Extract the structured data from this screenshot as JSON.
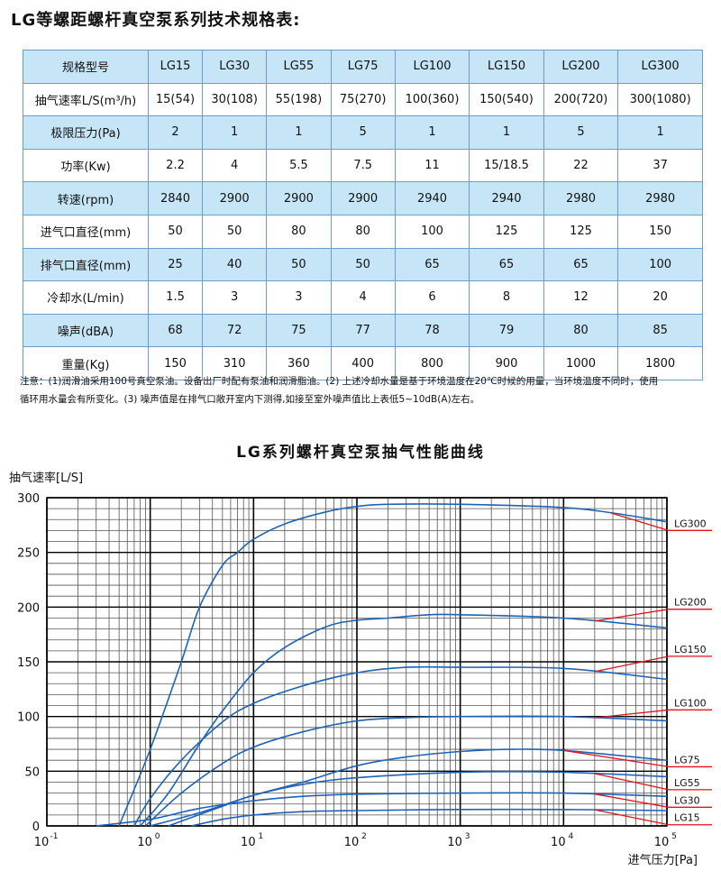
{
  "page_title": "LG等螺距螺杆真空泵系列技术规格表:",
  "spec_table": {
    "header": [
      "规格型号",
      "LG15",
      "LG30",
      "LG55",
      "LG75",
      "LG100",
      "LG150",
      "LG200",
      "LG300"
    ],
    "rows": [
      {
        "label": "抽气速率L/S(m³/h)",
        "values": [
          "15(54)",
          "30(108)",
          "55(198)",
          "75(270)",
          "100(360)",
          "150(540)",
          "200(720)",
          "300(1080)"
        ]
      },
      {
        "label": "极限压力(Pa)",
        "values": [
          "2",
          "1",
          "1",
          "5",
          "1",
          "1",
          "5",
          "1"
        ]
      },
      {
        "label": "功率(Kw)",
        "values": [
          "2.2",
          "4",
          "5.5",
          "7.5",
          "11",
          "15/18.5",
          "22",
          "37"
        ]
      },
      {
        "label": "转速(rpm)",
        "values": [
          "2840",
          "2900",
          "2900",
          "2900",
          "2940",
          "2940",
          "2980",
          "2980"
        ]
      },
      {
        "label": "进气口直径(mm)",
        "values": [
          "50",
          "50",
          "80",
          "80",
          "100",
          "125",
          "125",
          "150"
        ]
      },
      {
        "label": "排气口直径(mm)",
        "values": [
          "25",
          "40",
          "50",
          "50",
          "65",
          "65",
          "65",
          "100"
        ]
      },
      {
        "label": "冷却水(L/min)",
        "values": [
          "1.5",
          "3",
          "3",
          "4",
          "6",
          "8",
          "12",
          "20"
        ]
      },
      {
        "label": "噪声(dBA)",
        "values": [
          "68",
          "72",
          "75",
          "77",
          "78",
          "79",
          "80",
          "85"
        ]
      },
      {
        "label": "重量(Kg)",
        "values": [
          "150",
          "310",
          "360",
          "400",
          "800",
          "900",
          "1000",
          "1800"
        ]
      }
    ]
  },
  "notes": {
    "line1": "注意：(1)润滑油采用100号真空泵油。设备出厂时配有泵油和润滑脂油。(2) 上述冷却水量是基于环境温度在20℃时候的用量，当环境温度不同时，使用",
    "line2": "循环用水量会有所变化。(3) 噪声值是在排气口敞开室内下测得,如接至室外噪声值比上表低5~10dB(A)左右。"
  },
  "chart_title": "LG系列螺杆真空泵抽气性能曲线",
  "chart_data": {
    "type": "line",
    "title": "LG系列螺杆真空泵抽气性能曲线",
    "ylabel": "抽气速率[L/S]",
    "xlabel": "进气压力[Pa]",
    "x_scale": "log",
    "xlim": [
      0.1,
      100000
    ],
    "ylim": [
      0,
      300
    ],
    "yticks": [
      "0",
      "50",
      "100",
      "150",
      "200",
      "250",
      "300"
    ],
    "xticks": [
      {
        "base": "10",
        "exp": "-1"
      },
      {
        "base": "10",
        "exp": "0"
      },
      {
        "base": "10",
        "exp": "1"
      },
      {
        "base": "10",
        "exp": "2"
      },
      {
        "base": "10",
        "exp": "3"
      },
      {
        "base": "10",
        "exp": "4"
      },
      {
        "base": "10",
        "exp": "5"
      }
    ],
    "grid": true,
    "legend": "right",
    "curve_color": "#1f63b5",
    "leader_color": "#e0141e",
    "series": [
      {
        "name": "LG300",
        "x": [
          0.5,
          1,
          2,
          3,
          5,
          7,
          10,
          20,
          50,
          100,
          200,
          1000,
          10000,
          30000,
          100000
        ],
        "y": [
          0,
          70,
          150,
          200,
          238,
          250,
          262,
          276,
          287,
          292,
          294,
          294,
          291,
          286,
          278
        ]
      },
      {
        "name": "LG200",
        "x": [
          0.8,
          1.5,
          3,
          5,
          10,
          20,
          50,
          100,
          200,
          500,
          1000,
          10000,
          100000
        ],
        "y": [
          0,
          30,
          75,
          105,
          140,
          163,
          182,
          188,
          190,
          193,
          193,
          190,
          181
        ]
      },
      {
        "name": "LG150",
        "x": [
          0.7,
          1,
          2,
          5,
          10,
          30,
          100,
          300,
          1000,
          10000,
          100000
        ],
        "y": [
          0,
          25,
          60,
          95,
          112,
          128,
          140,
          145,
          145,
          144,
          134
        ]
      },
      {
        "name": "LG100",
        "x": [
          0.9,
          2,
          5,
          10,
          30,
          100,
          300,
          1000,
          10000,
          100000
        ],
        "y": [
          0,
          30,
          57,
          72,
          86,
          96,
          99,
          100,
          100,
          96
        ]
      },
      {
        "name": "LG75",
        "x": [
          1,
          3,
          10,
          30,
          100,
          300,
          1000,
          3000,
          10000,
          100000
        ],
        "y": [
          0,
          12,
          28,
          40,
          55,
          63,
          68,
          70,
          69,
          60
        ]
      },
      {
        "name": "LG55",
        "x": [
          1.5,
          5,
          10,
          30,
          100,
          1000,
          10000,
          100000
        ],
        "y": [
          0,
          18,
          28,
          38,
          44,
          49,
          49,
          45
        ]
      },
      {
        "name": "LG30",
        "x": [
          0.3,
          1,
          3,
          10,
          30,
          100,
          1000,
          10000,
          100000
        ],
        "y": [
          0,
          6,
          16,
          23,
          27,
          29,
          30,
          30,
          27
        ]
      },
      {
        "name": "LG15",
        "x": [
          2.5,
          5,
          10,
          30,
          100,
          1000,
          10000,
          100000
        ],
        "y": [
          0,
          6,
          10,
          13,
          14,
          15,
          15,
          14
        ]
      }
    ],
    "legend_labels": [
      {
        "name": "LG300",
        "y": 275
      },
      {
        "name": "LG200",
        "y": 203
      },
      {
        "name": "LG150",
        "y": 160
      },
      {
        "name": "LG100",
        "y": 111
      },
      {
        "name": "LG75",
        "y": 59
      },
      {
        "name": "LG55",
        "y": 38
      },
      {
        "name": "LG30",
        "y": 22
      },
      {
        "name": "LG15",
        "y": 6
      }
    ]
  }
}
